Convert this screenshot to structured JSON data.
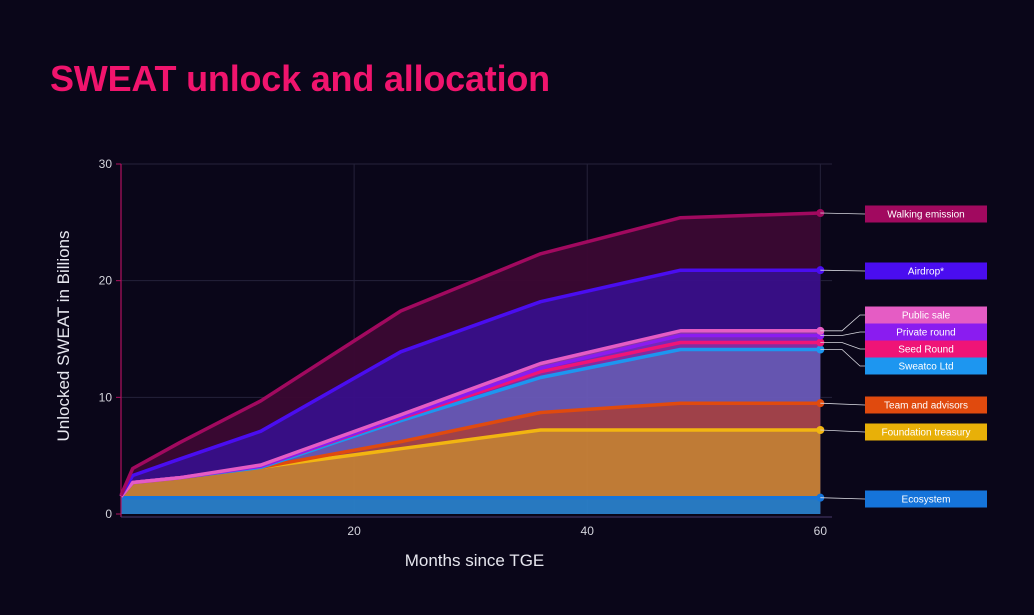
{
  "title": "SWEAT unlock and allocation",
  "chart_data": {
    "type": "area",
    "stacked": true,
    "title": "SWEAT unlock and allocation",
    "xlabel": "Months since TGE",
    "ylabel": "Unlocked SWEAT in Billions",
    "xlim": [
      0,
      61
    ],
    "ylim": [
      0,
      30
    ],
    "xticks": [
      20,
      40,
      60
    ],
    "yticks": [
      0,
      10,
      20,
      30
    ],
    "grid": true,
    "legend_position": "right",
    "x": [
      0,
      1,
      5,
      12,
      24,
      36,
      48,
      60
    ],
    "series": [
      {
        "name": "Ecosystem",
        "color": "#1574da",
        "fill": "#2a7fc9",
        "cumulative": [
          1.4,
          1.4,
          1.4,
          1.4,
          1.4,
          1.4,
          1.4,
          1.4
        ]
      },
      {
        "name": "Foundation treasury",
        "color": "#f2b511",
        "fill": "#c98238",
        "cumulative": [
          1.5,
          2.7,
          3.1,
          4.0,
          5.6,
          7.2,
          7.2,
          7.2
        ]
      },
      {
        "name": "Team and advisors",
        "color": "#e04a0e",
        "fill": "#a8454c",
        "cumulative": [
          1.5,
          2.7,
          3.1,
          4.0,
          6.2,
          8.7,
          9.5,
          9.5
        ]
      },
      {
        "name": "Sweatco Ltd",
        "color": "#1d96f0",
        "fill": "#6a5ab8",
        "cumulative": [
          1.5,
          2.7,
          3.1,
          4.0,
          8.0,
          11.7,
          14.1,
          14.1
        ]
      },
      {
        "name": "Seed Round",
        "color": "#ef1477",
        "fill": "#8a2ea8",
        "cumulative": [
          1.5,
          2.7,
          3.1,
          4.1,
          8.2,
          12.2,
          14.7,
          14.7
        ]
      },
      {
        "name": "Private round",
        "color": "#8a1cf0",
        "fill": "#7a2bc0",
        "cumulative": [
          1.5,
          2.7,
          3.1,
          4.1,
          8.3,
          12.5,
          15.3,
          15.3
        ]
      },
      {
        "name": "Public sale",
        "color": "#e55cc4",
        "fill": "#8f3aae",
        "cumulative": [
          1.5,
          2.7,
          3.1,
          4.2,
          8.5,
          12.9,
          15.7,
          15.7
        ]
      },
      {
        "name": "Airdrop*",
        "color": "#4a0df0",
        "fill": "#3a0f8a",
        "cumulative": [
          1.6,
          3.3,
          4.7,
          7.1,
          13.9,
          18.2,
          20.9,
          20.9
        ]
      },
      {
        "name": "Walking emission",
        "color": "#a1095f",
        "fill": "#3b0833",
        "cumulative": [
          1.6,
          3.9,
          6.1,
          9.7,
          17.4,
          22.3,
          25.4,
          25.8
        ]
      }
    ]
  }
}
